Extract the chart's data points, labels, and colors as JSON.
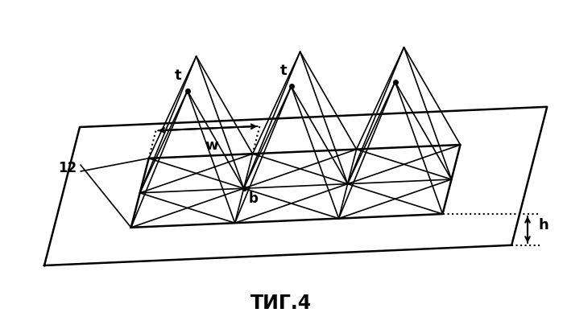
{
  "title": "ΤИГ.4",
  "label_12": "12",
  "label_t": "t",
  "label_b": "b",
  "label_w": "w",
  "label_h": "h",
  "bg_color": "#ffffff",
  "line_color": "#000000"
}
